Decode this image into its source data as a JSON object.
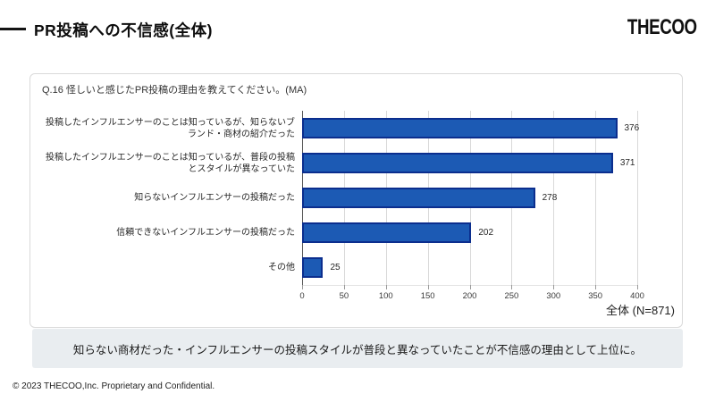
{
  "header": {
    "title": "PR投稿への不信感(全体)",
    "logo": "THECOO"
  },
  "chart_data": {
    "type": "bar",
    "orientation": "horizontal",
    "title": "Q.16 怪しいと感じたPR投稿の理由を教えてください。(MA)",
    "categories": [
      "投稿したインフルエンサーのことは知っているが、知らないブランド・商材の紹介だった",
      "投稿したインフルエンサーのことは知っているが、普段の投稿とスタイルが異なっていた",
      "知らないインフルエンサーの投稿だった",
      "信頼できないインフルエンサーの投稿だった",
      "その他"
    ],
    "values": [
      376,
      371,
      278,
      202,
      25
    ],
    "xlim": [
      0,
      400
    ],
    "xticks": [
      0,
      50,
      100,
      150,
      200,
      250,
      300,
      350,
      400
    ],
    "grid": true,
    "legend": false,
    "sample_label": "全体 (N=871)",
    "bar_color": "#1c5ab4",
    "bar_border": "#0b2e8e"
  },
  "note": "知らない商材だった・インフルエンサーの投稿スタイルが普段と異なっていたことが不信感の理由として上位に。",
  "footer": "© 2023 THECOO,Inc. Proprietary and Confidential."
}
